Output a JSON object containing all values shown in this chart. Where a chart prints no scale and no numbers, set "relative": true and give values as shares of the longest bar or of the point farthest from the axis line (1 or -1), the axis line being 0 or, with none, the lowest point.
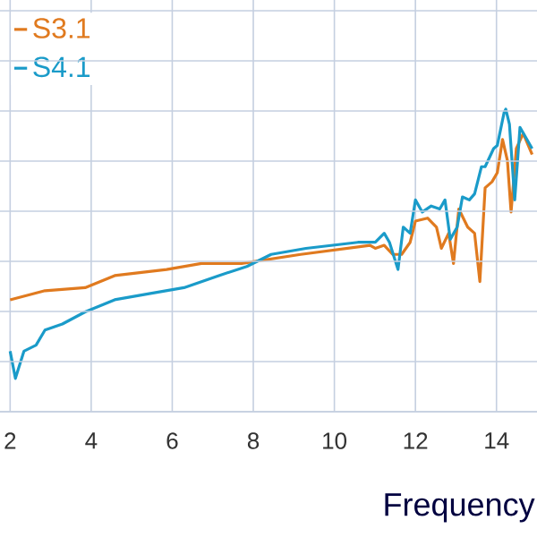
{
  "chart_data": {
    "type": "line",
    "xlabel": "Frequency",
    "relative": true,
    "grid": true,
    "legend": "top left",
    "xlim": [
      1.75,
      15
    ],
    "xticks": [
      2,
      4,
      6,
      8,
      10,
      12,
      14
    ],
    "series": [
      {
        "name": "S3.1",
        "color": "#e07a1f",
        "x": [
          2.0,
          2.86,
          3.85,
          4.58,
          5.86,
          6.72,
          7.71,
          9.17,
          10.88,
          11.01,
          11.23,
          11.44,
          11.66,
          11.87,
          12.0,
          12.3,
          12.52,
          12.64,
          12.82,
          12.94,
          13.07,
          13.29,
          13.46,
          13.59,
          13.72,
          13.89,
          14.02,
          14.15,
          14.27,
          14.36,
          14.49,
          14.66,
          14.88
        ],
        "values": [
          0.37,
          0.4,
          0.41,
          0.45,
          0.47,
          0.49,
          0.49,
          0.52,
          0.55,
          0.54,
          0.55,
          0.52,
          0.52,
          0.56,
          0.63,
          0.64,
          0.61,
          0.54,
          0.59,
          0.49,
          0.67,
          0.61,
          0.59,
          0.43,
          0.74,
          0.76,
          0.79,
          0.9,
          0.83,
          0.66,
          0.87,
          0.92,
          0.85
        ]
      },
      {
        "name": "S4.1",
        "color": "#1a9bc9",
        "x": [
          2.0,
          2.13,
          2.34,
          2.64,
          2.86,
          3.29,
          3.85,
          4.58,
          5.43,
          6.29,
          7.15,
          7.84,
          8.44,
          9.3,
          10.58,
          11.01,
          11.23,
          11.36,
          11.57,
          11.7,
          11.87,
          12.0,
          12.17,
          12.39,
          12.6,
          12.73,
          12.86,
          13.03,
          13.16,
          13.33,
          13.46,
          13.63,
          13.72,
          13.93,
          14.02,
          14.19,
          14.23,
          14.32,
          14.45,
          14.58,
          14.88
        ],
        "values": [
          0.2,
          0.11,
          0.2,
          0.22,
          0.27,
          0.29,
          0.33,
          0.37,
          0.39,
          0.41,
          0.45,
          0.48,
          0.52,
          0.54,
          0.56,
          0.56,
          0.59,
          0.56,
          0.47,
          0.61,
          0.59,
          0.7,
          0.66,
          0.68,
          0.67,
          0.7,
          0.57,
          0.61,
          0.71,
          0.7,
          0.72,
          0.81,
          0.81,
          0.87,
          0.88,
          0.99,
          1,
          0.95,
          0.7,
          0.94,
          0.87
        ]
      }
    ]
  }
}
